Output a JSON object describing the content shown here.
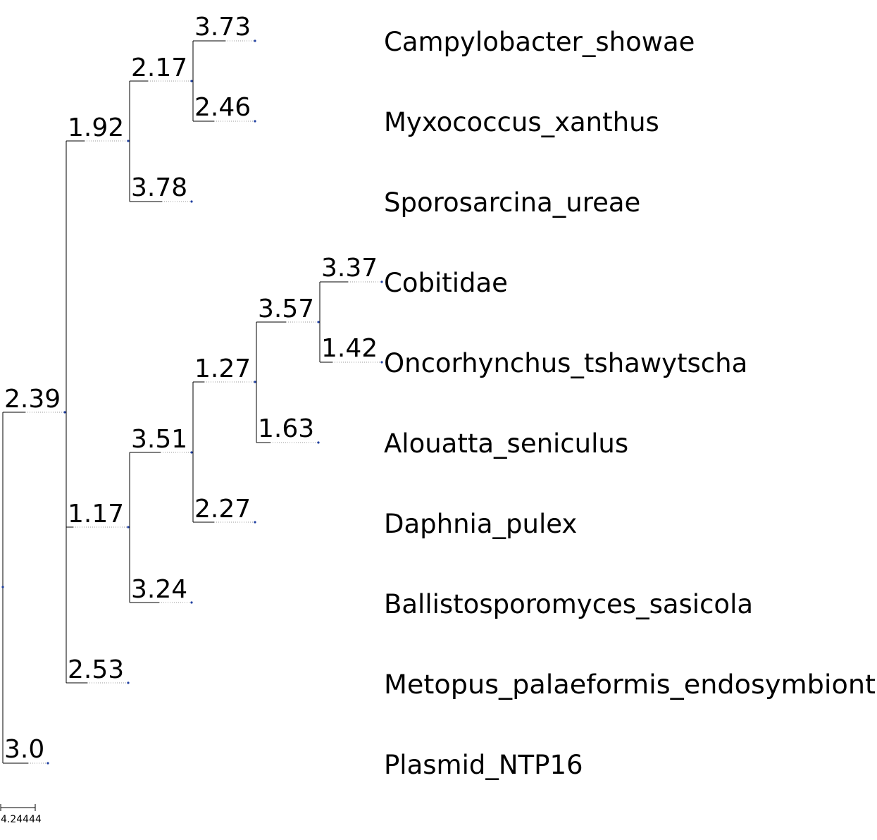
{
  "tree": {
    "leaves": [
      "Campylobacter_showae",
      "Myxococcus_xanthus",
      "Sporosarcina_ureae",
      "Cobitidae",
      "Oncorhynchus_tshawytscha",
      "Alouatta_seniculus",
      "Daphnia_pulex",
      "Ballistosporomyces_sasicola",
      "Metopus_palaeformis_endosymbiont",
      "Plasmid_NTP16"
    ],
    "branch_lengths": {
      "b_root_top": "2.39",
      "b_plasmid": "3.0",
      "b_top_upper": "1.92",
      "b_top_mid": "1.17",
      "b_metopus": "2.53",
      "b_upper_inner": "2.17",
      "b_sporosarcina": "3.78",
      "b_campylobacter": "3.73",
      "b_myxococcus": "2.46",
      "b_mid_inner": "3.51",
      "b_ballisto": "3.24",
      "b_mid_deep": "1.27",
      "b_daphnia": "2.27",
      "b_deep_inner": "3.57",
      "b_alouatta": "1.63",
      "b_cobitidae": "3.37",
      "b_oncorhynchus": "1.42"
    },
    "scale_label": "4.24444"
  }
}
